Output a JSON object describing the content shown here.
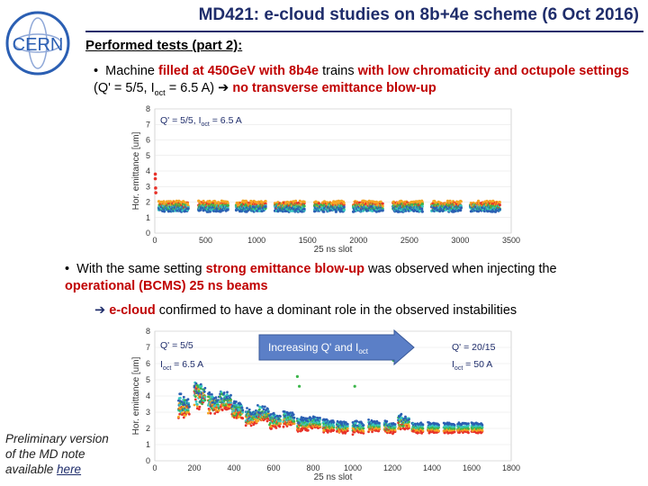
{
  "header": {
    "title": "MD421: e-cloud studies on 8b+4e scheme (6 Oct 2016)",
    "logo_text": "CERN"
  },
  "section": {
    "subhead": "Performed tests (part 2):"
  },
  "bullet1": {
    "p1": "Machine ",
    "p2": "filled at 450GeV with 8b4e",
    "p3": " trains ",
    "p4": "with low chromaticity and octupole settings",
    "p5": " (Q' = 5/5, I",
    "p5sub": "oct",
    "p6": " = 6.5 A) ",
    "p7": "no transverse emittance blow-up"
  },
  "bullet2": {
    "p1": "With the same setting ",
    "p2": "strong emittance blow-up",
    "p3": " was observed when injecting the ",
    "p4": "operational (BCMS) 25 ns beams"
  },
  "bullet3": {
    "p1": "e-cloud",
    "p2": " confirmed to have a dominant role in the observed instabilities"
  },
  "footnote": {
    "line1": "Preliminary version",
    "line2": "of the MD note",
    "line3": "available ",
    "link": "here"
  },
  "colors": {
    "title": "#1f2d6b",
    "highlight": "#c00000",
    "arrow_fill": "#5b7fc7"
  },
  "chart_data": [
    {
      "type": "scatter",
      "title": "",
      "annotation": "Q' = 5/5, I",
      "annotation_sub": "oct",
      "annotation_end": " = 6.5 A",
      "xlabel": "25 ns slot",
      "ylabel": "Hor. emittance [um]",
      "xlim": [
        0,
        3500
      ],
      "ylim": [
        0,
        8
      ],
      "xticks": [
        0,
        500,
        1000,
        1500,
        2000,
        2500,
        3000,
        3500
      ],
      "yticks": [
        0,
        1,
        2,
        3,
        4,
        5,
        6,
        7,
        8
      ],
      "train_starts": [
        40,
        430,
        800,
        1180,
        1570,
        1950,
        2340,
        2720,
        3100
      ],
      "train_length": 290,
      "series": [
        {
          "name": "red",
          "color": "#e8322a",
          "level": 1.8
        },
        {
          "name": "orange",
          "color": "#f5a623",
          "level": 1.9
        },
        {
          "name": "green",
          "color": "#3bb54a",
          "level": 1.7
        },
        {
          "name": "teal",
          "color": "#39c7c0",
          "level": 1.6
        },
        {
          "name": "blue",
          "color": "#2b5fb3",
          "level": 1.55
        }
      ]
    },
    {
      "type": "scatter",
      "title": "",
      "xlabel": "25 ns slot",
      "ylabel": "Hor. emittance [um]",
      "xlim": [
        0,
        1800
      ],
      "ylim": [
        0,
        8
      ],
      "xticks": [
        0,
        200,
        400,
        600,
        800,
        1000,
        1200,
        1400,
        1600,
        1800
      ],
      "yticks": [
        0,
        1,
        2,
        3,
        4,
        5,
        6,
        7,
        8
      ],
      "left_note": {
        "l1": "Q' = 5/5",
        "l2a": "I",
        "l2sub": "oct",
        "l2b": " = 6.5 A"
      },
      "arrow_label": {
        "a": "Increasing Q' and I",
        "sub": "oct"
      },
      "right_note": {
        "l1": "Q' = 20/15",
        "l2a": "I",
        "l2sub": "oct",
        "l2b": " = 50 A"
      },
      "train_starts": [
        120,
        200,
        270,
        330,
        390,
        460,
        520,
        580,
        650,
        720,
        780,
        850,
        920,
        1000,
        1080,
        1160,
        1230,
        1300,
        1380,
        1460,
        1530,
        1600
      ],
      "train_length": 55,
      "levels_by_train": [
        3.2,
        3.8,
        3.4,
        3.6,
        3.0,
        2.6,
        2.8,
        2.4,
        2.5,
        2.2,
        2.3,
        2.1,
        2.0,
        2.0,
        2.1,
        2.0,
        2.3,
        2.0,
        2.0,
        2.0,
        2.0,
        2.0
      ],
      "spread_by_train": [
        1.2,
        1.6,
        1.0,
        0.9,
        0.8,
        0.8,
        0.7,
        0.6,
        0.6,
        0.5,
        0.4,
        0.4,
        0.4,
        0.4,
        0.3,
        0.4,
        0.6,
        0.3,
        0.2,
        0.2,
        0.2,
        0.2
      ],
      "series": [
        {
          "name": "red",
          "color": "#e8322a"
        },
        {
          "name": "orange",
          "color": "#f5a623"
        },
        {
          "name": "green",
          "color": "#3bb54a"
        },
        {
          "name": "teal",
          "color": "#39c7c0"
        },
        {
          "name": "blue",
          "color": "#2b5fb3"
        }
      ]
    }
  ]
}
